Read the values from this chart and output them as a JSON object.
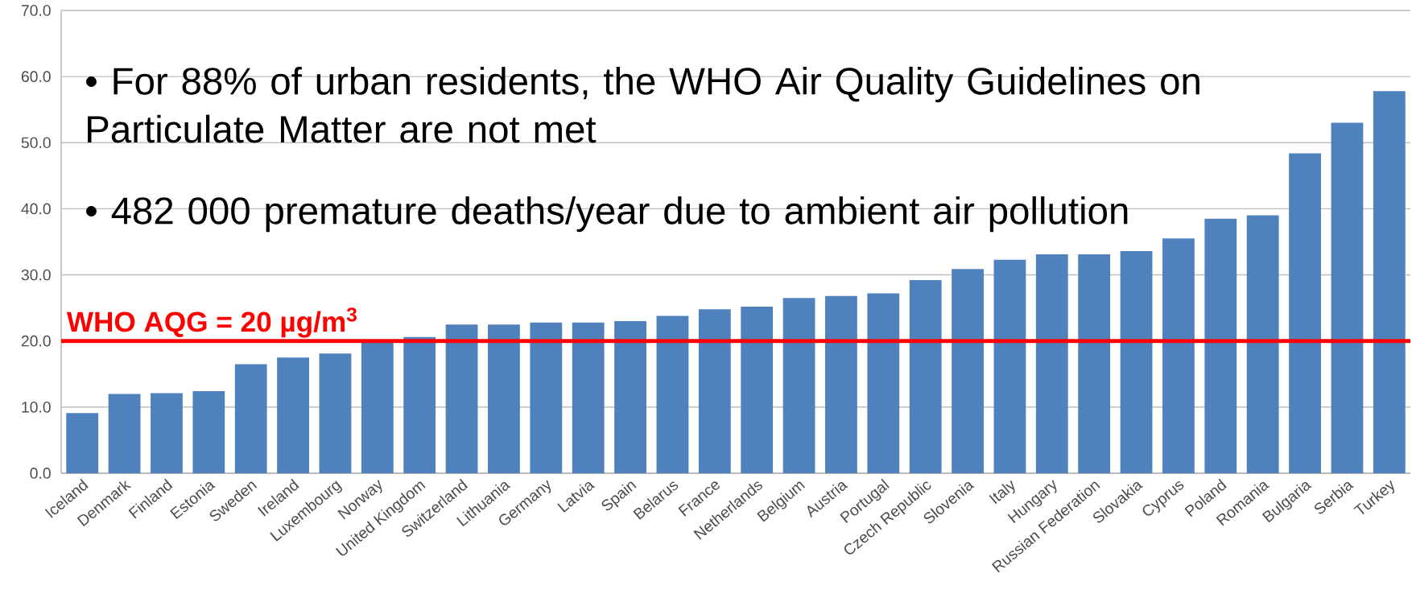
{
  "chart_data": {
    "type": "bar",
    "categories": [
      "Iceland",
      "Denmark",
      "Finland",
      "Estonia",
      "Sweden",
      "Ireland",
      "Luxembourg",
      "Norway",
      "United Kingdom",
      "Switzerland",
      "Lithuania",
      "Germany",
      "Latvia",
      "Spain",
      "Belarus",
      "France",
      "Netherlands",
      "Belgium",
      "Austria",
      "Portugal",
      "Czech Republic",
      "Slovenia",
      "Italy",
      "Hungary",
      "Russian Federation",
      "Slovakia",
      "Cyprus",
      "Poland",
      "Romania",
      "Bulgaria",
      "Serbia",
      "Turkey"
    ],
    "values": [
      9.1,
      12.0,
      12.1,
      12.4,
      16.5,
      17.5,
      18.1,
      20.0,
      20.6,
      22.5,
      22.5,
      22.8,
      22.8,
      23.0,
      23.8,
      24.8,
      25.2,
      26.5,
      26.8,
      27.2,
      29.2,
      30.9,
      32.3,
      33.1,
      33.1,
      33.6,
      35.5,
      38.5,
      39.0,
      48.4,
      53.0,
      57.8
    ],
    "color": "#4f81bd",
    "ylim": [
      0,
      70
    ],
    "yticks": [
      {
        "value": 0,
        "label": "0.0"
      },
      {
        "value": 10,
        "label": "10.0"
      },
      {
        "value": 20,
        "label": "20.0"
      },
      {
        "value": 30,
        "label": "30.0"
      },
      {
        "value": 40,
        "label": "40.0"
      },
      {
        "value": 50,
        "label": "50.0"
      },
      {
        "value": 60,
        "label": "60.0"
      },
      {
        "value": 70,
        "label": "70.0"
      }
    ],
    "grid": "y",
    "ref_lines": [
      {
        "axis": "y",
        "value": 20,
        "label": "WHO AQG = 20 µg/m$^{3}$",
        "color": "#ff0000"
      }
    ],
    "annotations": [
      "• For 88% of urban residents, the WHO Air Quality Guidelines on Particulate Matter are not met",
      "• 482 000 premature deaths/year due to ambient air pollution"
    ]
  }
}
